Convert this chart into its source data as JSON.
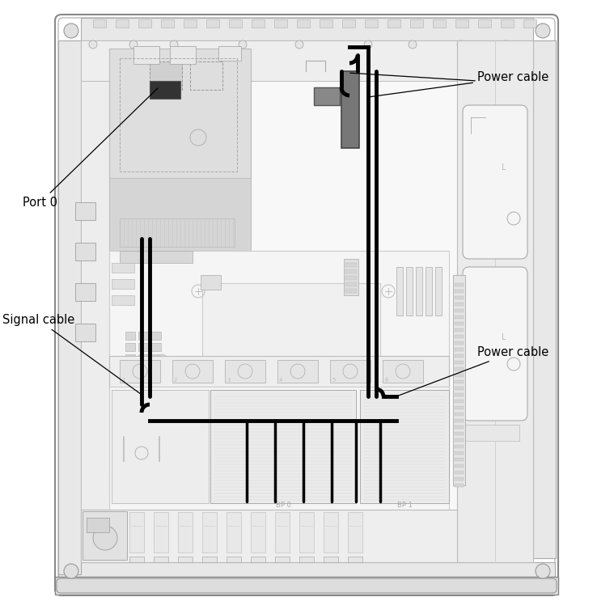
{
  "bg": "#ffffff",
  "lc_light": "#c8c8c8",
  "lc_med": "#aaaaaa",
  "lc_dark": "#888888",
  "lc_darker": "#666666",
  "fill_light": "#f0f0f0",
  "fill_med": "#e4e4e4",
  "fill_dark": "#d8d8d8",
  "fill_darker": "#cccccc",
  "fill_chassis": "#eeeeee",
  "cable_color": "#000000",
  "label_fontsize": 10.5,
  "labels": {
    "port0": "Port 0",
    "signal_cable": "Signal cable",
    "power_cable_top": "Power cable",
    "power_cable_bottom": "Power cable"
  }
}
